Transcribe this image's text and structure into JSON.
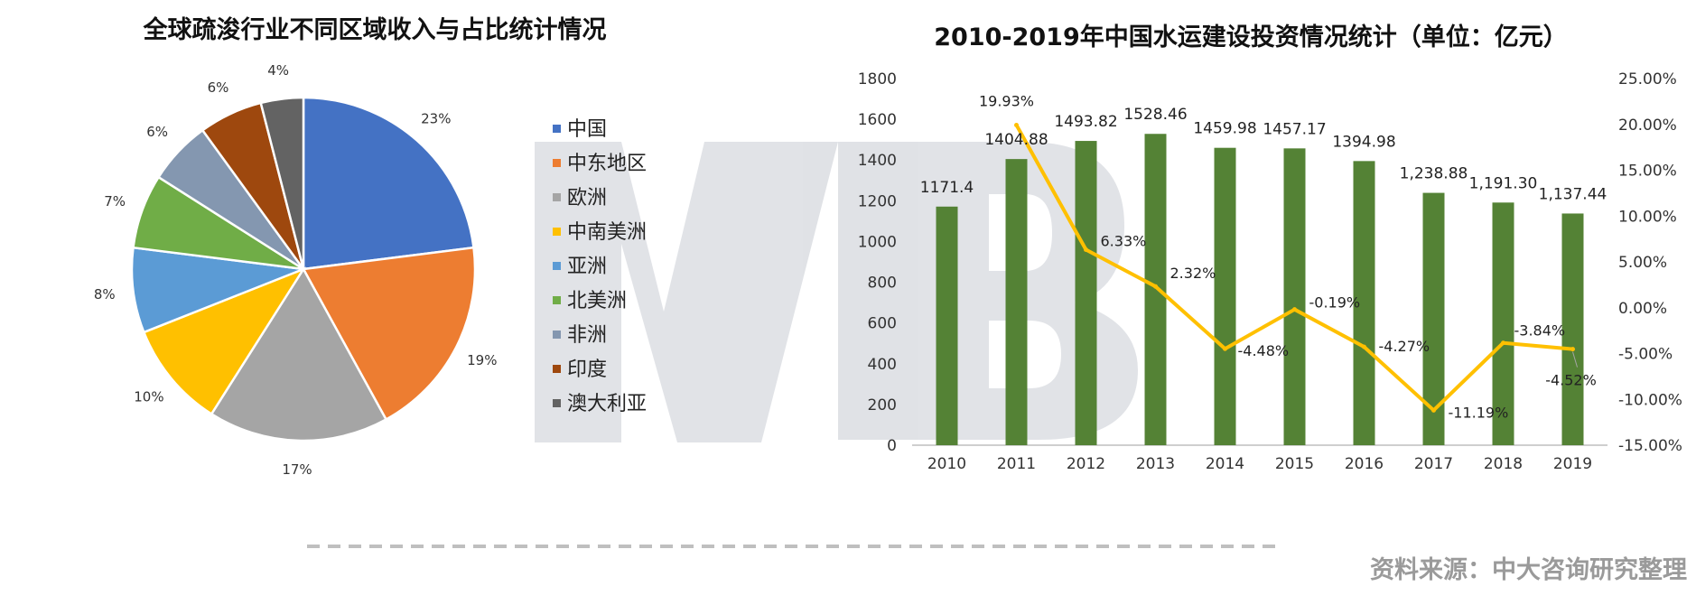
{
  "colors": {
    "bar": "#548235",
    "line": "#FFC000",
    "watermark": "#D9DCE1",
    "dash": "#BFBFBF",
    "source": "#9A9A9A"
  },
  "source_text": "资料来源：中大咨询研究整理",
  "chart_data": [
    {
      "type": "pie",
      "title": "全球疏浚行业不同区域收入与占比统计情况",
      "categories": [
        "中国",
        "中东地区",
        "欧洲",
        "中南美洲",
        "亚洲",
        "北美洲",
        "非洲",
        "印度",
        "澳大利亚"
      ],
      "values": [
        23,
        19,
        17,
        10,
        8,
        7,
        6,
        6,
        4
      ],
      "value_labels": [
        "23%",
        "19%",
        "17%",
        "10%",
        "8%",
        "7%",
        "6%",
        "6%",
        "4%"
      ],
      "colors": [
        "#4472C4",
        "#ED7D31",
        "#A5A5A5",
        "#FFC000",
        "#5B9BD5",
        "#70AD47",
        "#8497B0",
        "#9E480E",
        "#636363"
      ],
      "legend_position": "right"
    },
    {
      "type": "bar",
      "title": "2010-2019年中国水运建设投资情况统计（单位：亿元）",
      "categories": [
        "2010",
        "2011",
        "2012",
        "2013",
        "2014",
        "2015",
        "2016",
        "2017",
        "2018",
        "2019"
      ],
      "series": [
        {
          "type": "bar",
          "values": [
            1171.4,
            1404.88,
            1493.82,
            1528.46,
            1459.98,
            1457.17,
            1394.98,
            1238.88,
            1191.3,
            1137.44
          ],
          "labels": [
            "1171.4",
            "1404.88",
            "1493.82",
            "1528.46",
            "1459.98",
            "1457.17",
            "1394.98",
            "1,238.88",
            "1,191.30",
            "1,137.44"
          ],
          "axis": "left"
        },
        {
          "type": "line",
          "values": [
            19.93,
            6.33,
            2.32,
            -4.48,
            -0.19,
            -4.27,
            -11.19,
            -3.84,
            -4.52
          ],
          "x": [
            "2011",
            "2012",
            "2013",
            "2014",
            "2015",
            "2016",
            "2017",
            "2018",
            "2019"
          ],
          "labels": [
            "19.93%",
            "6.33%",
            "2.32%",
            "-4.48%",
            "-0.19%",
            "-4.27%",
            "-11.19%",
            "-3.84%",
            "-4.52%"
          ],
          "axis": "right"
        }
      ],
      "ylim_left": [
        0,
        1800
      ],
      "yticks_left": [
        "0",
        "200",
        "400",
        "600",
        "800",
        "1000",
        "1200",
        "1400",
        "1600",
        "1800"
      ],
      "ylim_right": [
        -15,
        25
      ],
      "yticks_right": [
        "-15.00%",
        "-10.00%",
        "-5.00%",
        "0.00%",
        "5.00%",
        "10.00%",
        "15.00%",
        "20.00%",
        "25.00%"
      ],
      "grid": false,
      "legend": false
    }
  ]
}
